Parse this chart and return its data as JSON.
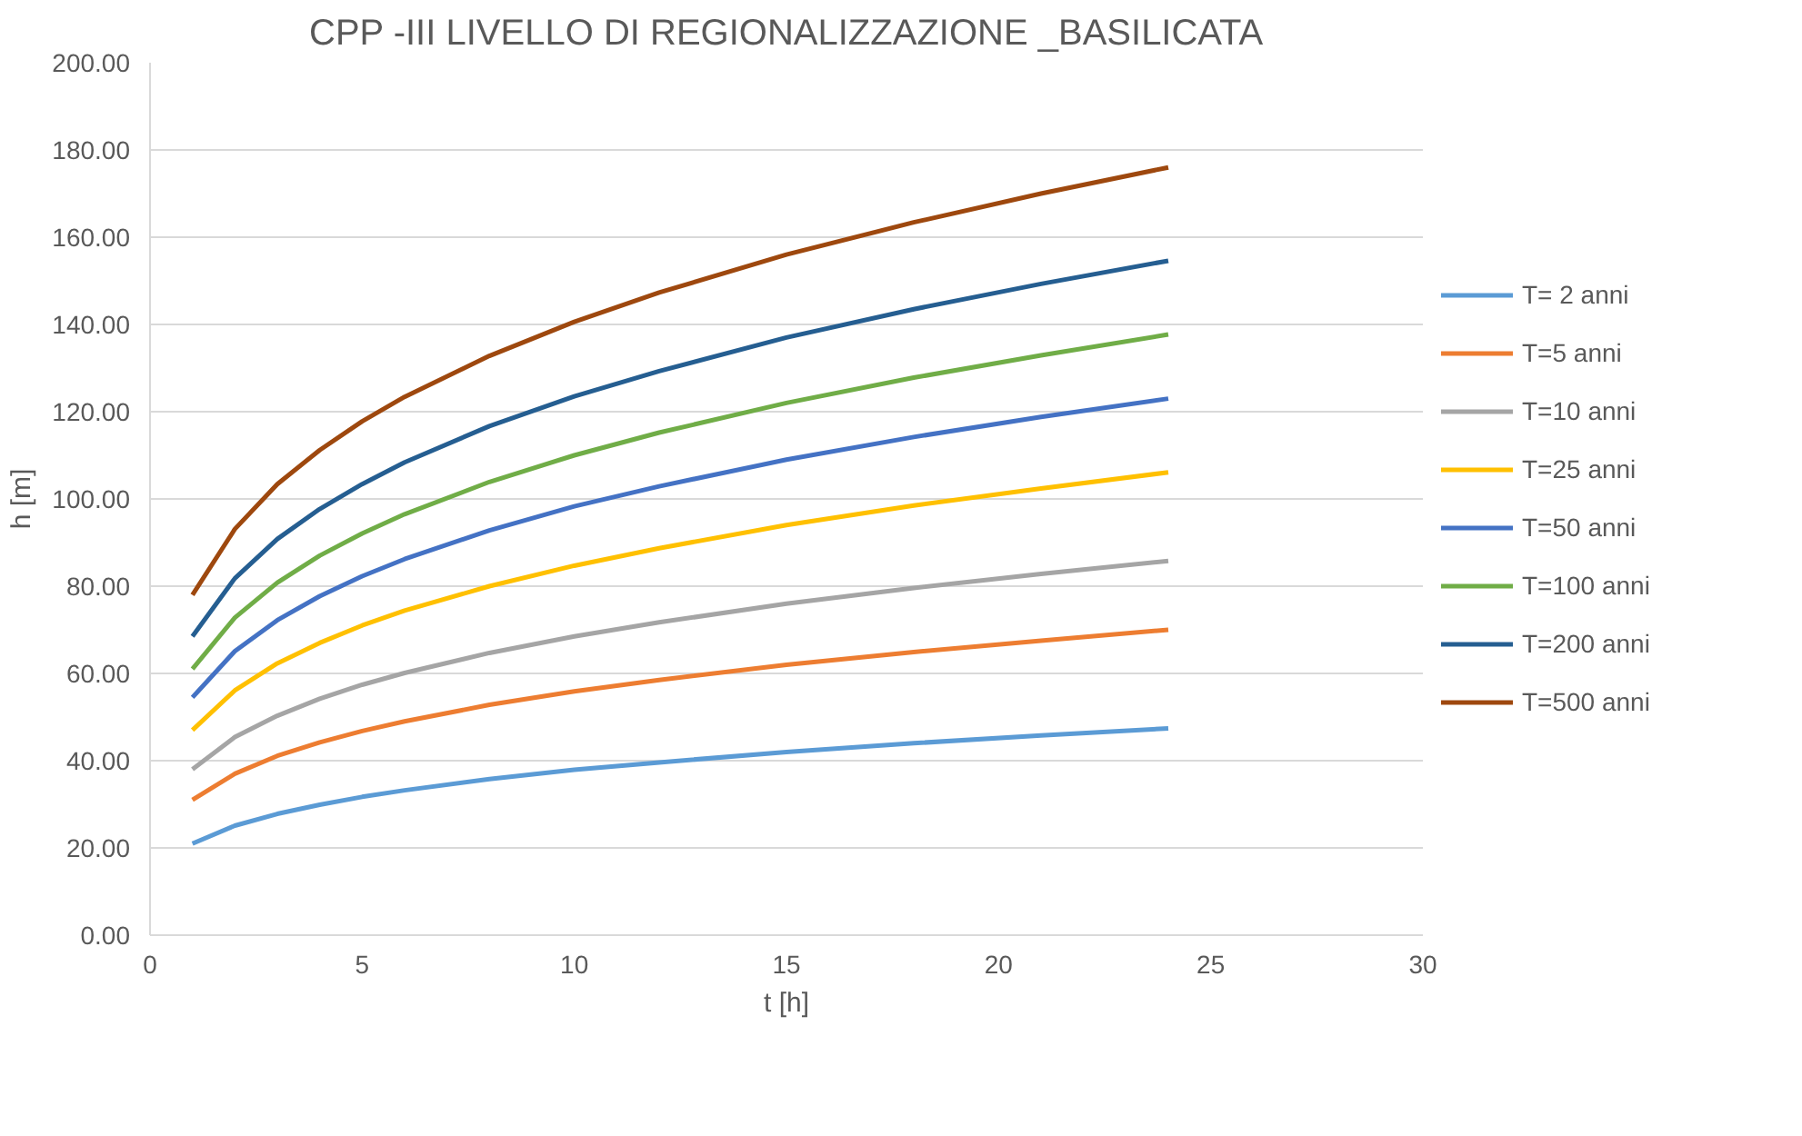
{
  "chart_data": {
    "type": "line",
    "title": "CPP -III LIVELLO DI REGIONALIZZAZIONE _BASILICATA",
    "xlabel": "t [h]",
    "ylabel": "h [m]",
    "x": [
      1,
      2,
      3,
      4,
      5,
      6,
      8,
      10,
      12,
      15,
      18,
      21,
      24
    ],
    "series": [
      {
        "name": "T= 2 anni",
        "color": "#5b9bd5",
        "values": [
          21,
          25.1,
          27.8,
          29.9,
          31.7,
          33.2,
          35.8,
          37.9,
          39.6,
          42.0,
          44.0,
          45.8,
          47.4
        ]
      },
      {
        "name": "T=5 anni",
        "color": "#ed7d31",
        "values": [
          31,
          37.0,
          41.1,
          44.2,
          46.8,
          49.0,
          52.8,
          55.9,
          58.5,
          62.0,
          64.9,
          67.5,
          70.0
        ]
      },
      {
        "name": "T=10 anni",
        "color": "#a5a5a5",
        "values": [
          38,
          45.4,
          50.3,
          54.2,
          57.4,
          60.1,
          64.7,
          68.5,
          71.7,
          76.0,
          79.6,
          82.8,
          85.8
        ]
      },
      {
        "name": "T=25 anni",
        "color": "#ffc000",
        "values": [
          47,
          56.1,
          62.3,
          67.0,
          71.0,
          74.4,
          80.0,
          84.7,
          88.7,
          94.0,
          98.5,
          102.4,
          106.1
        ]
      },
      {
        "name": "T=50 anni",
        "color": "#4472c4",
        "values": [
          54.5,
          65.1,
          72.2,
          77.7,
          82.3,
          86.2,
          92.8,
          98.3,
          102.9,
          109.0,
          114.2,
          118.8,
          123.0
        ]
      },
      {
        "name": "T=100 anni",
        "color": "#70ad47",
        "values": [
          61,
          72.8,
          80.8,
          87.0,
          92.1,
          96.5,
          103.9,
          110.0,
          115.2,
          122.0,
          127.8,
          132.9,
          137.7
        ]
      },
      {
        "name": "T=200 anni",
        "color": "#255e91",
        "values": [
          68.5,
          81.8,
          90.8,
          97.7,
          103.4,
          108.4,
          116.7,
          123.5,
          129.3,
          137.0,
          143.5,
          149.3,
          154.6
        ]
      },
      {
        "name": "T=500 anni",
        "color": "#9e480e",
        "values": [
          78,
          93.1,
          103.4,
          111.2,
          117.8,
          123.4,
          132.8,
          140.6,
          147.3,
          156.0,
          163.4,
          170.0,
          176.0
        ]
      }
    ],
    "xlim": [
      0,
      30
    ],
    "xticks": [
      0,
      5,
      10,
      15,
      20,
      25,
      30
    ],
    "ylim": [
      0,
      200
    ],
    "yticks": [
      {
        "value": 0,
        "label": "0.00"
      },
      {
        "value": 20,
        "label": "20.00"
      },
      {
        "value": 40,
        "label": "40.00"
      },
      {
        "value": 60,
        "label": "60.00"
      },
      {
        "value": 80,
        "label": "80.00"
      },
      {
        "value": 100,
        "label": "100.00"
      },
      {
        "value": 120,
        "label": "120.00"
      },
      {
        "value": 140,
        "label": "140.00"
      },
      {
        "value": 160,
        "label": "160.00"
      },
      {
        "value": 180,
        "label": "180.00"
      },
      {
        "value": 200,
        "label": "200.00"
      }
    ],
    "grid": "y",
    "legend": "right",
    "marker": "none",
    "line_style": "solid"
  }
}
